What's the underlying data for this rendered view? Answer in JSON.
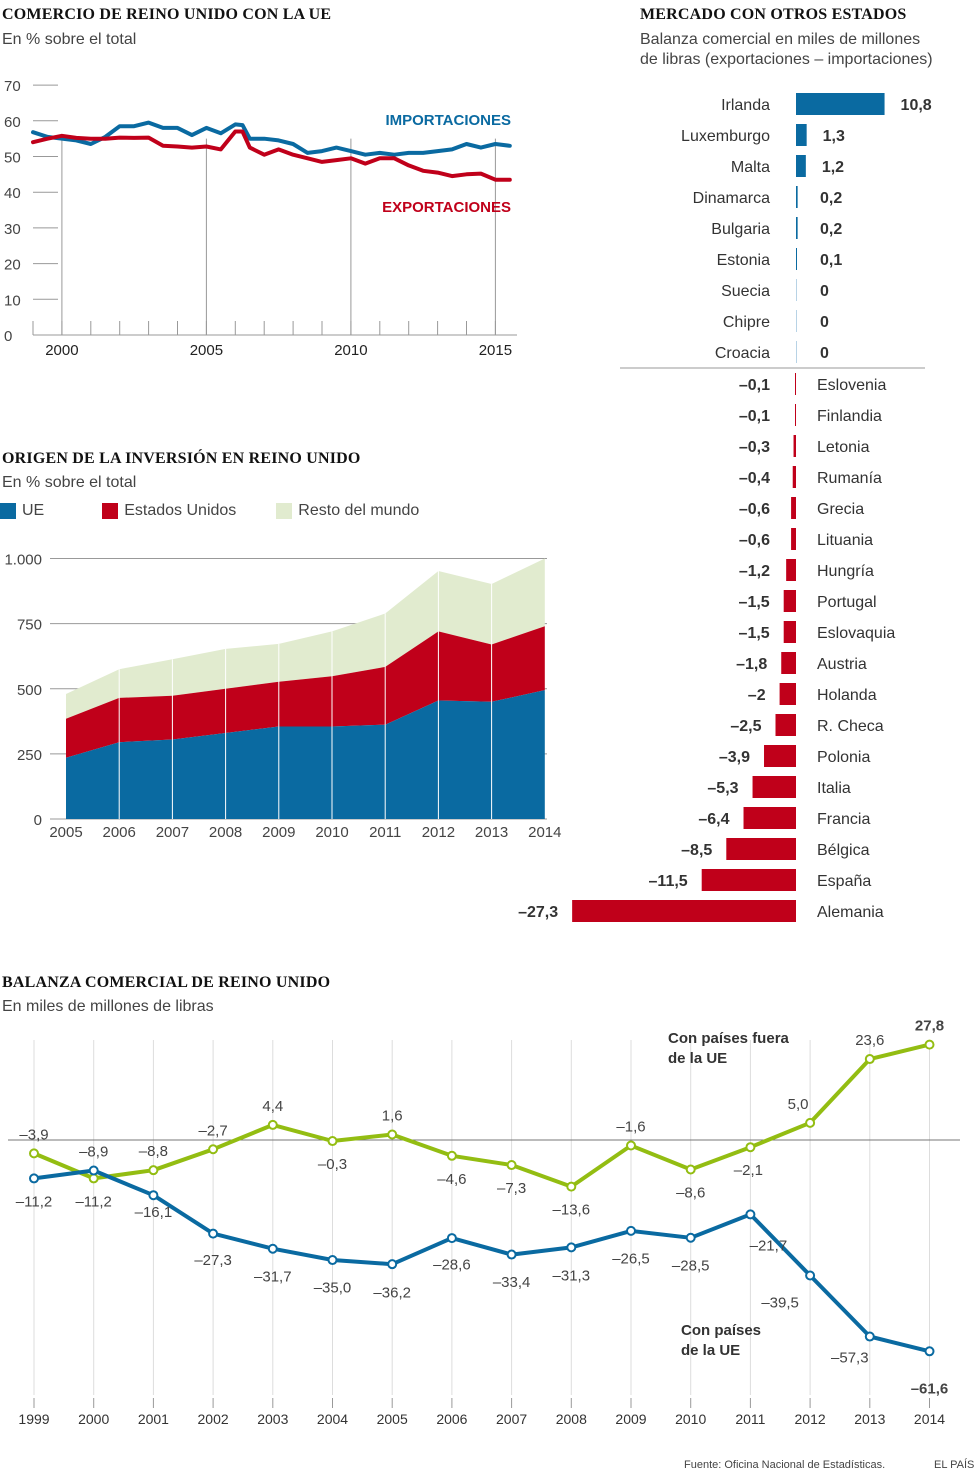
{
  "colors": {
    "blue": "#0a6aa1",
    "red": "#c0001a",
    "green": "#93bd12",
    "pale_green": "#e1ebcf",
    "grid": "#999999",
    "text": "#333333"
  },
  "chart_data": [
    {
      "id": "trade_eu",
      "type": "line",
      "title": "COMERCIO DE REINO UNIDO CON LA UE",
      "subtitle": "En % sobre el total",
      "xlabel": "",
      "ylabel": "",
      "ylim": [
        0,
        70
      ],
      "xlim": [
        1999,
        2015.75
      ],
      "yticks": [
        "0",
        "10",
        "20",
        "30",
        "40",
        "50",
        "60",
        "70"
      ],
      "ytick_values": [
        0,
        10,
        20,
        30,
        40,
        50,
        60,
        70
      ],
      "xticks": [
        "2000",
        "2005",
        "2010",
        "2015"
      ],
      "xtick_values": [
        2000,
        2005,
        2010,
        2015
      ],
      "grid": true,
      "x": [
        1999.0,
        1999.5,
        2000.0,
        2000.5,
        2001.0,
        2001.5,
        2002.0,
        2002.5,
        2003.0,
        2003.5,
        2004.0,
        2004.5,
        2005.0,
        2005.5,
        2006.0,
        2006.25,
        2006.5,
        2007.0,
        2007.5,
        2008.0,
        2008.5,
        2009.0,
        2009.5,
        2010.0,
        2010.5,
        2011.0,
        2011.5,
        2012.0,
        2012.5,
        2013.0,
        2013.5,
        2014.0,
        2014.5,
        2015.0,
        2015.5
      ],
      "series": [
        {
          "name": "IMPORTACIONES",
          "color": "#0a6aa1",
          "values": [
            56.8,
            55.5,
            55.0,
            54.5,
            53.5,
            55.5,
            58.5,
            58.5,
            59.5,
            58.0,
            58.0,
            56.0,
            58.0,
            56.5,
            59.0,
            58.8,
            55.0,
            55.0,
            54.5,
            53.5,
            51.0,
            51.5,
            52.5,
            51.5,
            50.5,
            51.0,
            50.5,
            51.0,
            51.0,
            51.5,
            52.0,
            53.5,
            52.5,
            53.5,
            53.0
          ]
        },
        {
          "name": "EXPORTACIONES",
          "color": "#c0001a",
          "values": [
            54.0,
            55.0,
            55.8,
            55.2,
            55.0,
            55.0,
            55.3,
            55.2,
            55.3,
            53.0,
            52.8,
            52.5,
            52.8,
            52.0,
            57.0,
            57.0,
            52.5,
            50.5,
            52.0,
            50.5,
            49.5,
            48.5,
            49.0,
            49.5,
            48.0,
            49.5,
            49.5,
            47.5,
            46.0,
            45.5,
            44.5,
            45.0,
            45.2,
            43.5,
            43.5
          ]
        }
      ]
    },
    {
      "id": "market_other_states",
      "type": "bar",
      "title": "MERCADO CON OTROS ESTADOS",
      "subtitle_lines": [
        "Balanza comercial en miles de millones",
        "de libras (exportaciones – importaciones)"
      ],
      "categories": [
        "Irlanda",
        "Luxemburgo",
        "Malta",
        "Dinamarca",
        "Bulgaria",
        "Estonia",
        "Suecia",
        "Chipre",
        "Croacia",
        "Eslovenia",
        "Finlandia",
        "Letonia",
        "Rumanía",
        "Grecia",
        "Lituania",
        "Hungría",
        "Portugal",
        "Eslovaquia",
        "Austria",
        "Holanda",
        "R. Checa",
        "Polonia",
        "Italia",
        "Francia",
        "Bélgica",
        "España",
        "Alemania"
      ],
      "values": [
        10.8,
        1.3,
        1.2,
        0.2,
        0.2,
        0.1,
        0,
        0,
        0,
        -0.1,
        -0.1,
        -0.3,
        -0.4,
        -0.6,
        -0.6,
        -1.2,
        -1.5,
        -1.5,
        -1.8,
        -2,
        -2.5,
        -3.9,
        -5.3,
        -6.4,
        -8.5,
        -11.5,
        -27.3
      ],
      "labels": [
        "10,8",
        "1,3",
        "1,2",
        "0,2",
        "0,2",
        "0,1",
        "0",
        "0",
        "0",
        "–0,1",
        "–0,1",
        "–0,3",
        "–0,4",
        "–0,6",
        "–0,6",
        "–1,2",
        "–1,5",
        "–1,5",
        "–1,8",
        "–2",
        "–2,5",
        "–3,9",
        "–5,3",
        "–6,4",
        "–8,5",
        "–11,5",
        "–27,3"
      ],
      "positive_color": "#0a6aa1",
      "negative_color": "#c0001a",
      "orientation": "horizontal"
    },
    {
      "id": "investment_origin",
      "type": "area",
      "title": "ORIGEN DE LA INVERSIÓN EN REINO UNIDO",
      "subtitle": "En % sobre el total",
      "categories": [
        "2005",
        "2006",
        "2007",
        "2008",
        "2009",
        "2010",
        "2011",
        "2012",
        "2013",
        "2014"
      ],
      "ylim": [
        0,
        1000
      ],
      "yticks": [
        "0",
        "250",
        "500",
        "750",
        "1.000"
      ],
      "ytick_values": [
        0,
        250,
        500,
        750,
        1000
      ],
      "stacked": true,
      "legend_position": "top-left",
      "series": [
        {
          "name": "UE",
          "color": "#0a6aa1",
          "values": [
            235,
            295,
            305,
            330,
            355,
            355,
            362,
            455,
            450,
            495
          ]
        },
        {
          "name": "Estados Unidos",
          "color": "#c0001a",
          "values": [
            150,
            170,
            168,
            170,
            172,
            193,
            222,
            265,
            220,
            245
          ]
        },
        {
          "name": "Resto del mundo",
          "color": "#e1ebcf",
          "values": [
            95,
            110,
            140,
            153,
            145,
            172,
            205,
            232,
            232,
            260
          ]
        }
      ]
    },
    {
      "id": "trade_balance",
      "type": "line",
      "title": "BALANZA COMERCIAL DE REINO UNIDO",
      "subtitle": "En miles de millones de libras",
      "categories": [
        "1999",
        "2000",
        "2001",
        "2002",
        "2003",
        "2004",
        "2005",
        "2006",
        "2007",
        "2008",
        "2009",
        "2010",
        "2011",
        "2012",
        "2013",
        "2014"
      ],
      "ylim": [
        -61.6,
        27.8
      ],
      "series": [
        {
          "name": "Con países fuera de la UE",
          "label_lines": [
            "Con países fuera",
            "de la UE"
          ],
          "color": "#93bd12",
          "values": [
            -3.9,
            -11.2,
            -8.8,
            -2.7,
            4.4,
            -0.3,
            1.6,
            -4.6,
            -7.3,
            -13.6,
            -1.6,
            -8.6,
            -2.1,
            5.0,
            23.6,
            27.8
          ],
          "labels": [
            "–3,9",
            "–11,2",
            "–8,8",
            "–2,7",
            "4,4",
            "–0,3",
            "1,6",
            "–4,6",
            "–7,3",
            "–13,6",
            "–1,6",
            "–8,6",
            "–2,1",
            "5,0",
            "23,6",
            "27,8"
          ]
        },
        {
          "name": "Con países de la UE",
          "label_lines": [
            "Con países",
            "de la UE"
          ],
          "color": "#0a6aa1",
          "values": [
            -11.2,
            -8.9,
            -16.1,
            -27.3,
            -31.7,
            -35.0,
            -36.2,
            -28.6,
            -33.4,
            -31.3,
            -26.5,
            -28.5,
            -21.7,
            -39.5,
            -57.3,
            -61.6
          ],
          "labels": [
            "–11,2",
            "–8,9",
            "–16,1",
            "–27,3",
            "–31,7",
            "–35,0",
            "–36,2",
            "–28,6",
            "–33,4",
            "–31,3",
            "–26,5",
            "–28,5",
            "–21,7",
            "–39,5",
            "–57,3",
            "–61,6"
          ]
        }
      ]
    }
  ],
  "footer": {
    "source": "Fuente: Oficina Nacional de Estadísticas.",
    "brand": "EL PAÍS"
  }
}
